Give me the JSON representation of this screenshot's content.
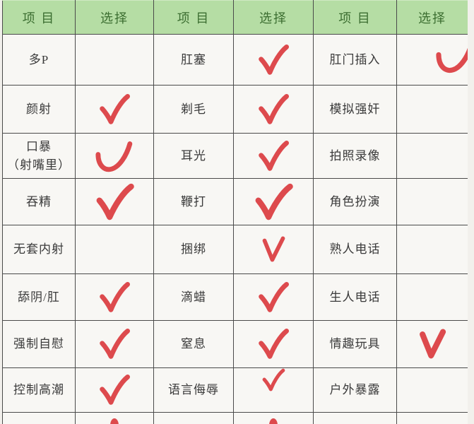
{
  "table": {
    "header": [
      "项 目",
      "选择",
      "项 目",
      "选择",
      "项 目",
      "选择"
    ],
    "colors": {
      "check": "#dd4a4d",
      "header_bg": "#b5dda4",
      "header_text": "#3c6e31",
      "grid": "#4a4a4a",
      "cell_bg": "#f8f7f4"
    },
    "rows": [
      [
        {
          "t": "多P"
        },
        {
          "c": "none"
        },
        {
          "t": "肛塞"
        },
        {
          "c": "check"
        },
        {
          "t": "肛门插入"
        },
        {
          "c": "swoosh-right"
        }
      ],
      [
        {
          "t": "颜射"
        },
        {
          "c": "check"
        },
        {
          "t": "剃毛"
        },
        {
          "c": "check"
        },
        {
          "t": "模拟强奸"
        },
        {
          "c": "none"
        }
      ],
      [
        {
          "t": "口暴\n（射嘴里）"
        },
        {
          "c": "swoosh"
        },
        {
          "t": "耳光"
        },
        {
          "c": "check"
        },
        {
          "t": "拍照录像"
        },
        {
          "c": "none"
        }
      ],
      [
        {
          "t": "吞精"
        },
        {
          "c": "check-large"
        },
        {
          "t": "鞭打"
        },
        {
          "c": "check-large"
        },
        {
          "t": "角色扮演"
        },
        {
          "c": "none"
        }
      ],
      [
        {
          "t": "无套内射"
        },
        {
          "c": "none"
        },
        {
          "t": "捆绑"
        },
        {
          "c": "vee"
        },
        {
          "t": "熟人电话"
        },
        {
          "c": "none"
        }
      ],
      [
        {
          "t": "舔阴/肛"
        },
        {
          "c": "check"
        },
        {
          "t": "滴蜡"
        },
        {
          "c": "check"
        },
        {
          "t": "生人电话"
        },
        {
          "c": "none"
        }
      ],
      [
        {
          "t": "强制自慰"
        },
        {
          "c": "check"
        },
        {
          "t": "窒息"
        },
        {
          "c": "check"
        },
        {
          "t": "情趣玩具"
        },
        {
          "c": "vee-bold"
        }
      ],
      [
        {
          "t": "控制高潮"
        },
        {
          "c": "check"
        },
        {
          "t": "语言侮辱"
        },
        {
          "c": "check-small-high"
        },
        {
          "t": "户外暴露"
        },
        {
          "c": "none"
        }
      ]
    ],
    "partial_row": [
      {
        "t": ""
      },
      {
        "c": "tip"
      },
      {
        "t": ""
      },
      {
        "c": "tip"
      },
      {
        "t": ""
      },
      {
        "c": "none"
      }
    ]
  }
}
